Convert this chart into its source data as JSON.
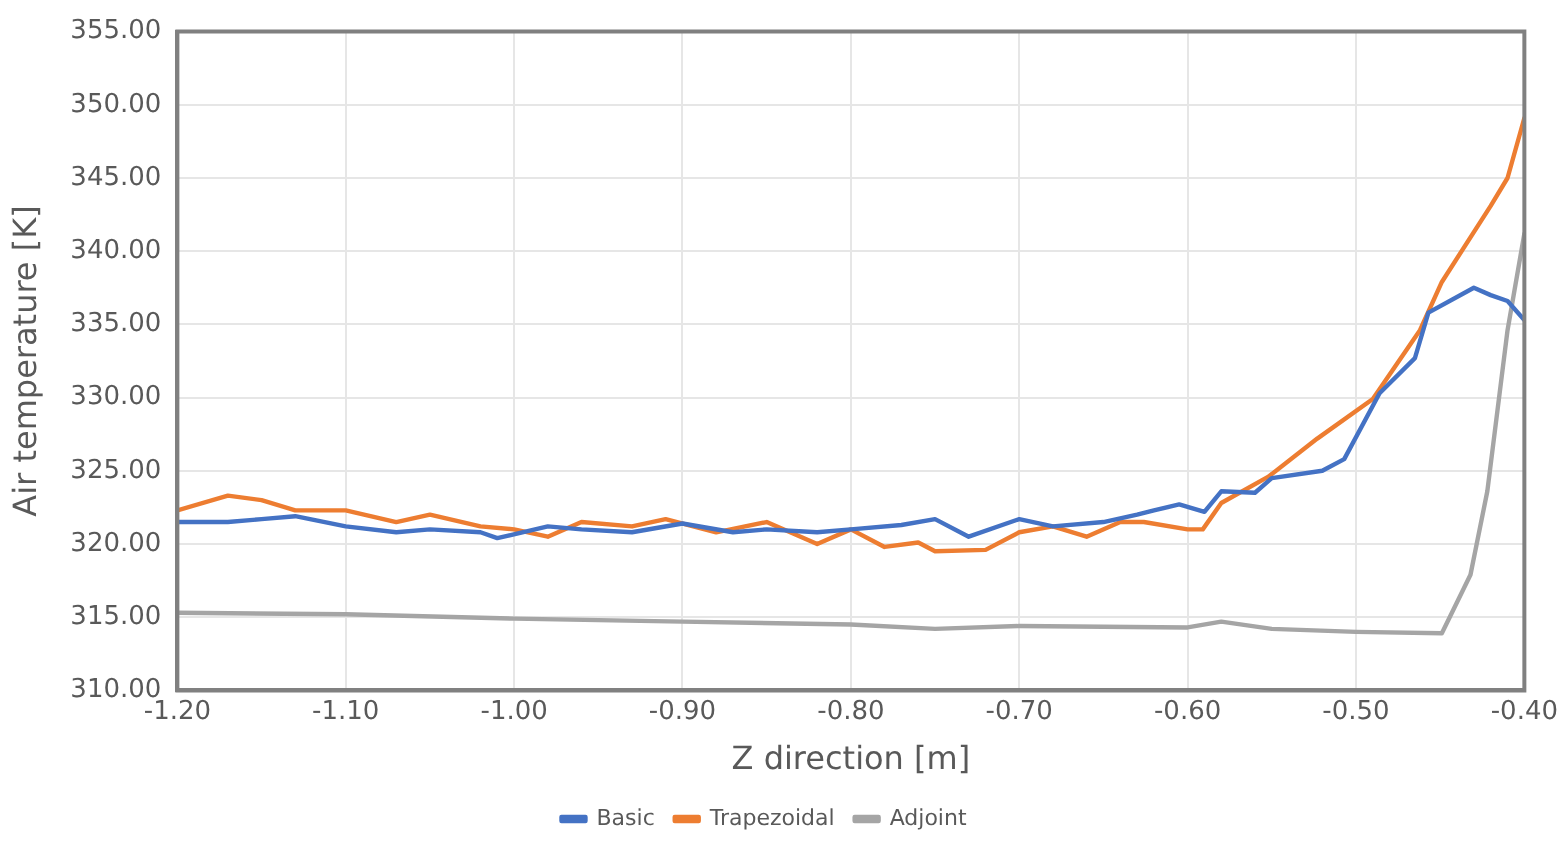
{
  "chart_data": {
    "type": "line",
    "xlabel": "Z direction [m]",
    "ylabel": "Air temperature [K]",
    "xlim": [
      -1.2,
      -0.4
    ],
    "ylim": [
      310,
      355
    ],
    "xticks": [
      {
        "value": -1.2,
        "label": "-1.20"
      },
      {
        "value": -1.1,
        "label": "-1.10"
      },
      {
        "value": -1.0,
        "label": "-1.00"
      },
      {
        "value": -0.9,
        "label": "-0.90"
      },
      {
        "value": -0.8,
        "label": "-0.80"
      },
      {
        "value": -0.7,
        "label": "-0.70"
      },
      {
        "value": -0.6,
        "label": "-0.60"
      },
      {
        "value": -0.5,
        "label": "-0.50"
      },
      {
        "value": -0.4,
        "label": "-0.40"
      }
    ],
    "yticks": [
      {
        "value": 310,
        "label": "310.00"
      },
      {
        "value": 315,
        "label": "315.00"
      },
      {
        "value": 320,
        "label": "320.00"
      },
      {
        "value": 325,
        "label": "325.00"
      },
      {
        "value": 330,
        "label": "330.00"
      },
      {
        "value": 335,
        "label": "335.00"
      },
      {
        "value": 340,
        "label": "340.00"
      },
      {
        "value": 345,
        "label": "345.00"
      },
      {
        "value": 350,
        "label": "350.00"
      },
      {
        "value": 355,
        "label": "355.00"
      }
    ],
    "grid": true,
    "legend": "bottom",
    "marker": "none",
    "line_style": "solid",
    "series": [
      {
        "name": "Basic",
        "color": "#4472c4",
        "x": [
          -1.2,
          -1.17,
          -1.15,
          -1.13,
          -1.1,
          -1.07,
          -1.05,
          -1.02,
          -1.01,
          -0.98,
          -0.96,
          -0.93,
          -0.9,
          -0.87,
          -0.85,
          -0.82,
          -0.8,
          -0.77,
          -0.75,
          -0.73,
          -0.7,
          -0.68,
          -0.65,
          -0.63,
          -0.62,
          -0.605,
          -0.59,
          -0.58,
          -0.56,
          -0.55,
          -0.52,
          -0.507,
          -0.486,
          -0.465,
          -0.457,
          -0.43,
          -0.42,
          -0.41,
          -0.4
        ],
        "values": [
          321.5,
          321.5,
          321.7,
          321.9,
          321.2,
          320.8,
          321.0,
          320.8,
          320.4,
          321.2,
          321.0,
          320.8,
          321.4,
          320.8,
          321.0,
          320.8,
          321.0,
          321.3,
          321.7,
          320.5,
          321.7,
          321.2,
          321.5,
          322.0,
          322.3,
          322.7,
          322.2,
          323.6,
          323.5,
          324.5,
          325.0,
          325.8,
          330.3,
          332.7,
          335.8,
          337.5,
          337.0,
          336.6,
          335.3
        ]
      },
      {
        "name": "Trapezoidal",
        "color": "#ed7d31",
        "x": [
          -1.2,
          -1.17,
          -1.15,
          -1.13,
          -1.1,
          -1.07,
          -1.05,
          -1.02,
          -1.0,
          -0.98,
          -0.96,
          -0.93,
          -0.91,
          -0.88,
          -0.85,
          -0.82,
          -0.8,
          -0.78,
          -0.76,
          -0.75,
          -0.72,
          -0.7,
          -0.68,
          -0.66,
          -0.64,
          -0.626,
          -0.6,
          -0.591,
          -0.58,
          -0.552,
          -0.523,
          -0.49,
          -0.462,
          -0.449,
          -0.42,
          -0.41,
          -0.4
        ],
        "values": [
          322.3,
          323.3,
          323.0,
          322.3,
          322.3,
          321.5,
          322.0,
          321.2,
          321.0,
          320.5,
          321.5,
          321.2,
          321.7,
          320.8,
          321.5,
          320.0,
          321.0,
          319.8,
          320.1,
          319.5,
          319.6,
          320.8,
          321.2,
          320.5,
          321.5,
          321.5,
          321.0,
          321.0,
          322.8,
          324.6,
          327.2,
          329.9,
          334.6,
          337.9,
          343.1,
          345.0,
          349.1
        ]
      },
      {
        "name": "Adjoint",
        "color": "#a5a5a5",
        "x": [
          -1.2,
          -1.1,
          -1.0,
          -0.9,
          -0.8,
          -0.75,
          -0.7,
          -0.6,
          -0.58,
          -0.55,
          -0.5,
          -0.449,
          -0.432,
          -0.422,
          -0.41,
          -0.4
        ],
        "values": [
          315.3,
          315.2,
          314.9,
          314.7,
          314.5,
          314.2,
          314.4,
          314.3,
          314.7,
          314.2,
          314.0,
          313.9,
          317.9,
          323.6,
          334.6,
          341.2
        ]
      }
    ]
  }
}
